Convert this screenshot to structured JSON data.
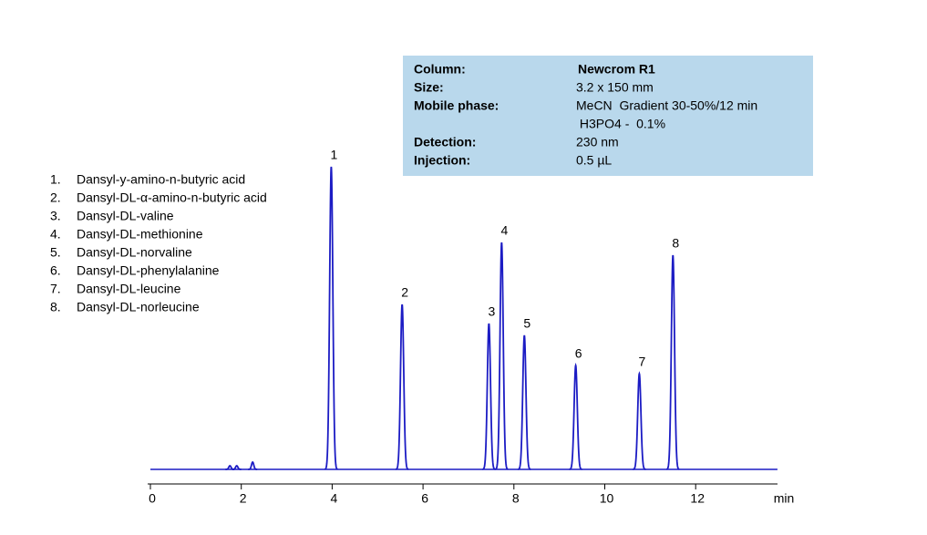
{
  "chart_data": {
    "type": "chromatogram",
    "x_label": "min",
    "xlim": [
      0,
      13.8
    ],
    "xticks": [
      0,
      2,
      4,
      6,
      8,
      10,
      12
    ],
    "ylim": [
      0,
      360
    ],
    "color": "#1c1cc4",
    "peak_labels": [
      "1",
      "2",
      "3",
      "4",
      "5",
      "6",
      "7",
      "8"
    ],
    "compounds": [
      "Dansyl-y-amino-n-butyric acid",
      "Dansyl-DL-α-amino-n-butyric acid",
      "Dansyl-DL-valine",
      "Dansyl-DL-methionine",
      "Dansyl-DL-norvaline",
      "Dansyl-DL-phenylalanine",
      "Dansyl-DL-leucine",
      "Dansyl-DL-norleucine"
    ],
    "retention_times": [
      3.98,
      5.54,
      7.45,
      7.73,
      8.23,
      9.36,
      10.76,
      11.5
    ],
    "heights": [
      332,
      181,
      160,
      249,
      147,
      114,
      105,
      235
    ],
    "minor_peak_times": [
      1.75,
      1.9,
      2.25
    ],
    "minor_peak_heights": [
      4,
      4,
      8
    ]
  },
  "info_box": {
    "rows": [
      {
        "label": "Column:",
        "value": [
          "Newcrom R1"
        ]
      },
      {
        "label": "Size:",
        "value": [
          "3.2 x 150 mm"
        ]
      },
      {
        "label": "Mobile phase:",
        "value": [
          "MeCN  Gradient 30-50%/12 min",
          " H3PO4 -  0.1%"
        ]
      },
      {
        "label": "Detection:",
        "value": [
          "230 nm"
        ]
      },
      {
        "label": "Injection:",
        "value": [
          "0.5 µL"
        ]
      }
    ]
  }
}
